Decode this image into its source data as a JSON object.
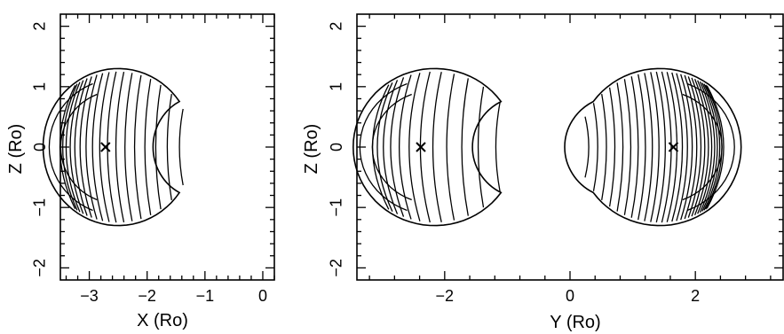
{
  "panels": [
    {
      "id": "left",
      "xlabel": "X  (Ro)",
      "ylabel": "Z  (Ro)",
      "xlim": [
        -3.5,
        0.2
      ],
      "ylim": [
        -2.2,
        2.2
      ],
      "x_major_ticks": [
        -3,
        -2,
        -1,
        0
      ],
      "x_tick_labels": [
        "−3",
        "−2",
        "−1",
        "0"
      ],
      "y_major_ticks": [
        -2,
        -1,
        0,
        1,
        2
      ],
      "y_tick_labels": [
        "−2",
        "−1",
        "0",
        "1",
        "2"
      ],
      "lobes": [
        {
          "center": -2.72,
          "facing": "right",
          "contour_levels": 17
        }
      ],
      "markers": [
        {
          "symbol": "×",
          "x": -2.72,
          "z": 0
        }
      ]
    },
    {
      "id": "right",
      "xlabel": "Y  (Ro)",
      "ylabel": "Z  (Ro)",
      "xlim": [
        -3.4,
        3.4
      ],
      "ylim": [
        -2.2,
        2.2
      ],
      "x_major_ticks": [
        -2,
        0,
        2
      ],
      "x_tick_labels": [
        "−2",
        "0",
        "2"
      ],
      "y_major_ticks": [
        -2,
        -1,
        0,
        1,
        2
      ],
      "y_tick_labels": [
        "−2",
        "−1",
        "0",
        "1",
        "2"
      ],
      "lobes": [
        {
          "center": -2.38,
          "facing": "right",
          "contour_levels": 12
        },
        {
          "center": 1.65,
          "facing": "left",
          "contour_levels": 26
        }
      ],
      "markers": [
        {
          "symbol": "×",
          "x": -2.38,
          "z": 0
        },
        {
          "symbol": "×",
          "x": 1.65,
          "z": 0
        }
      ]
    }
  ]
}
